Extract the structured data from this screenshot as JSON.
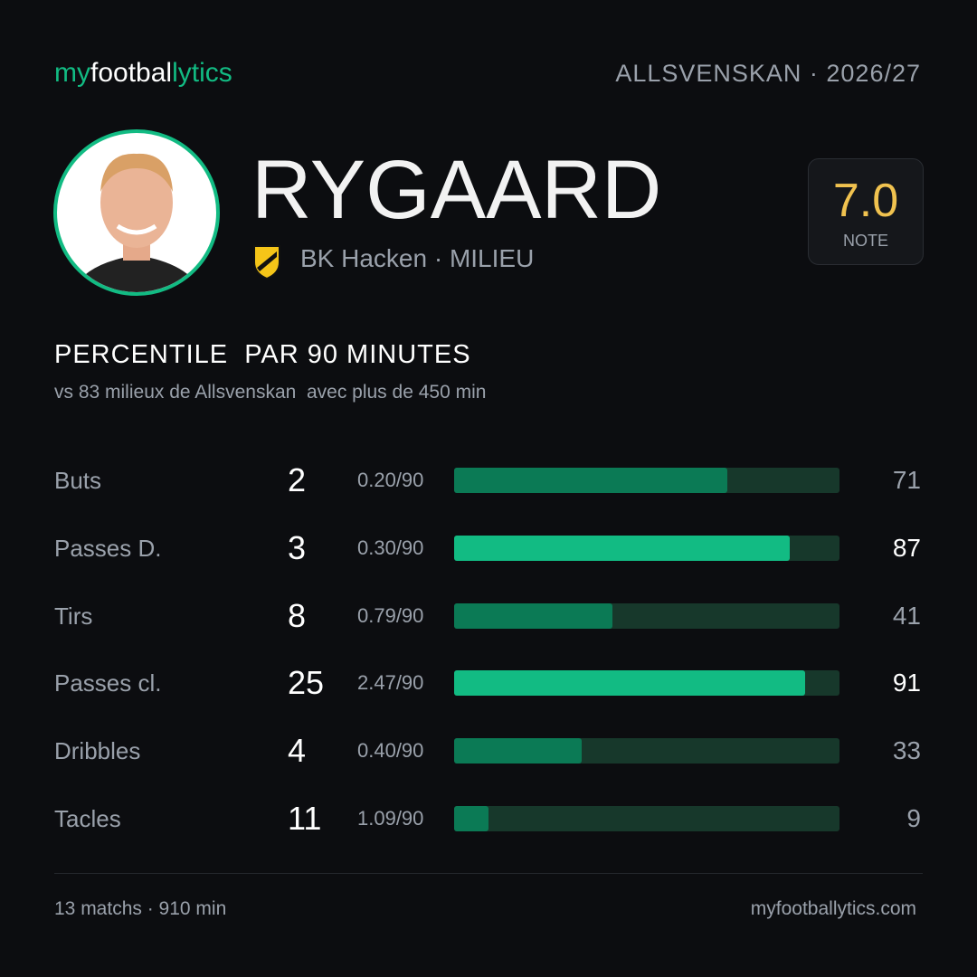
{
  "brand": {
    "part1": "my",
    "part2": "footbal",
    "part3": "lytics"
  },
  "competition": "ALLSVENSKAN · 2026/27",
  "player": {
    "name": "RYGAARD",
    "club_line": "BK Hacken · MILIEU",
    "rating": "7.0",
    "rating_label": "NOTE"
  },
  "section": {
    "title": "PERCENTILE  PAR 90 MINUTES",
    "subtitle": "vs 83 milieux de Allsvenskan  avec plus de 450 min"
  },
  "stats": {
    "xlim": [
      0,
      100
    ],
    "track_color": "#17382b",
    "rows": [
      {
        "label": "Buts",
        "total": 2,
        "per90": "0.20/90",
        "percentile": 71,
        "color": "#0b7a55",
        "text_color": "#9aa1ab"
      },
      {
        "label": "Passes D.",
        "total": 3,
        "per90": "0.30/90",
        "percentile": 87,
        "color": "#12bb83",
        "text_color": "#ffffff"
      },
      {
        "label": "Tirs",
        "total": 8,
        "per90": "0.79/90",
        "percentile": 41,
        "color": "#0b7a55",
        "text_color": "#9aa1ab"
      },
      {
        "label": "Passes cl.",
        "total": 25,
        "per90": "2.47/90",
        "percentile": 91,
        "color": "#12bb83",
        "text_color": "#ffffff"
      },
      {
        "label": "Dribbles",
        "total": 4,
        "per90": "0.40/90",
        "percentile": 33,
        "color": "#0b7a55",
        "text_color": "#9aa1ab"
      },
      {
        "label": "Tacles",
        "total": 11,
        "per90": "1.09/90",
        "percentile": 9,
        "color": "#0b7a55",
        "text_color": "#9aa1ab"
      }
    ]
  },
  "footer": {
    "left": "13 matchs · 910 min",
    "right": "myfootballytics.com"
  }
}
